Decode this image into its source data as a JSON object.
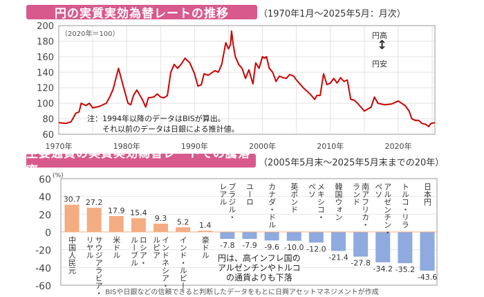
{
  "chart_data": [
    {
      "type": "line",
      "title": "円の実質実効為替レートの推移",
      "subtitle": "（1970年1月～2025年5月：月次）",
      "unit_note": "（2020年＝100）",
      "ylim": [
        60,
        200
      ],
      "yticks": [
        "200",
        "180",
        "160",
        "140",
        "120",
        "100",
        "80",
        "60"
      ],
      "xticks": [
        "1970年",
        "1980年",
        "1990年",
        "2000年",
        "2010年",
        "2020年"
      ],
      "xlim": [
        1970,
        2025.4
      ],
      "grid": true,
      "direction_labels": {
        "up": "円高",
        "down": "円安"
      },
      "note": "注：1994年以降のデータはBISが算出。\n　　それ以前のデータは日銀による推計値。",
      "series": [
        {
          "name": "円の実質実効為替レート",
          "color": "#cc0000",
          "x": [
            1970,
            1971,
            1971.8,
            1972.5,
            1973.0,
            1973.3,
            1974,
            1974.5,
            1975,
            1976,
            1977,
            1977.5,
            1978,
            1978.8,
            1979.5,
            1980.2,
            1980.6,
            1981,
            1981.5,
            1982.3,
            1982.8,
            1983.2,
            1984,
            1984.5,
            1985,
            1985.5,
            1986,
            1986.5,
            1987,
            1987.5,
            1988,
            1988.6,
            1989.3,
            1990,
            1990.5,
            1991,
            1991.4,
            1992,
            1993,
            1993.5,
            1994,
            1994.6,
            1995.0,
            1995.3,
            1995.45,
            1995.7,
            1996,
            1996.5,
            1997,
            1997.5,
            1998,
            1998.6,
            1999,
            1999.5,
            2000,
            2000.3,
            2000.6,
            2001,
            2001.5,
            2002,
            2002.5,
            2003,
            2003.5,
            2004,
            2004.6,
            2005,
            2006,
            2007,
            2007.7,
            2008,
            2008.5,
            2009,
            2009.5,
            2010,
            2010.5,
            2011,
            2011.5,
            2012,
            2012.5,
            2013,
            2013.5,
            2014,
            2015,
            2016,
            2016.5,
            2017,
            2018,
            2019,
            2020,
            2020.5,
            2021,
            2021.6,
            2022,
            2022.5,
            2023,
            2023.5,
            2024,
            2024.5,
            2024.8,
            2025.4
          ],
          "y": [
            75,
            74,
            76,
            87,
            89,
            100,
            97,
            100,
            94,
            96,
            100,
            108,
            118,
            145,
            122,
            100,
            98,
            110,
            117,
            105,
            95,
            107,
            108,
            112,
            108,
            107,
            110,
            140,
            150,
            145,
            150,
            158,
            152,
            138,
            122,
            124,
            138,
            136,
            142,
            140,
            150,
            178,
            170,
            176,
            193,
            175,
            160,
            150,
            145,
            132,
            143,
            125,
            152,
            145,
            160,
            158,
            160,
            145,
            140,
            128,
            135,
            133,
            132,
            137,
            135,
            130,
            120,
            112,
            105,
            110,
            110,
            138,
            124,
            126,
            132,
            126,
            133,
            128,
            130,
            105,
            104,
            100,
            90,
            95,
            108,
            100,
            98,
            99,
            103,
            100,
            97,
            90,
            80,
            78,
            78,
            74,
            73,
            70,
            74,
            75
          ]
        }
      ]
    },
    {
      "type": "bar",
      "title": "主要通貨の実質実効為替レートでの騰落率",
      "subtitle": "（2005年5月末～2025年5月末までの20年）",
      "ylabel": "(%)",
      "ylim": [
        -60,
        60
      ],
      "yticks": [
        "60",
        "40",
        "20",
        "0",
        "-20",
        "-40",
        "-60"
      ],
      "categories": [
        "中国人民元",
        "サウジアラビア・\nリヤル",
        "米ドル",
        "ロシア・\nルーブル",
        "インドネシア・\nルピア",
        "インド・ルピー",
        "豪ドル",
        "ブラジル・\nレアル",
        "ユーロ",
        "カナダ・ドル",
        "英ポンド",
        "メキシコ・\nペソ",
        "韓国ウォン",
        "南アフリカ・\nランド",
        "アルゼンチン・\nペソ",
        "トルコ・リラ",
        "日本円"
      ],
      "values": [
        30.7,
        27.2,
        17.9,
        15.4,
        9.3,
        5.2,
        1.4,
        -7.8,
        -7.9,
        -9.6,
        -10.0,
        -12.0,
        -21.4,
        -27.8,
        -34.2,
        -35.2,
        -43.6
      ],
      "value_labels": [
        "30.7",
        "27.2",
        "17.9",
        "15.4",
        "9.3",
        "5.2",
        "1.4",
        "-7.8",
        "-7.9",
        "-9.6",
        "-10.0",
        "-12.0",
        "-21.4",
        "-27.8",
        "-34.2",
        "-35.2",
        "-43.6"
      ],
      "colors": {
        "positive": "#f4ad82",
        "negative": "#8eaadf"
      },
      "annotation": "円は、高インフレ国の\nアルゼンチンやトルコ\n　の通貨よりも下落"
    }
  ],
  "footer": "BISや日銀などの信頼できると判断したデータをもとに日興アセットマネジメントが作成"
}
